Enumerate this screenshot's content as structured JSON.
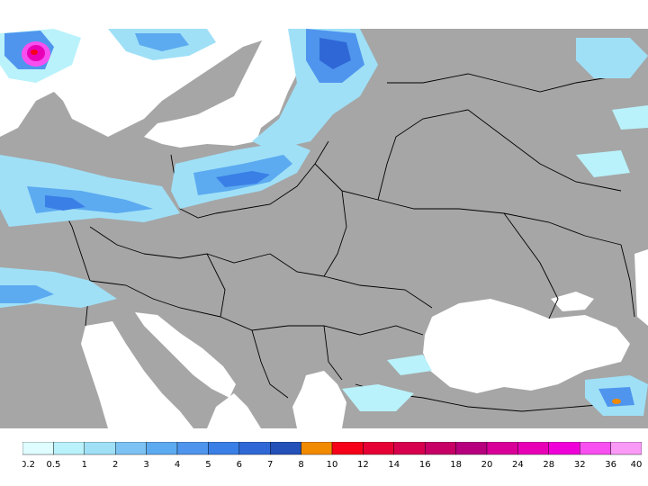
{
  "map": {
    "land_color": "#a6a6a6",
    "sea_color": "#ffffff",
    "border_color": "#000000"
  },
  "legend": {
    "colors": [
      "#dffcff",
      "#b9f2fb",
      "#9fe0f7",
      "#7cc3f3",
      "#5caaf0",
      "#4f95ee",
      "#3a7fe6",
      "#2f68d6",
      "#2451b8",
      "#f28a00",
      "#f50018",
      "#e60033",
      "#d6004c",
      "#c60065",
      "#b6007e",
      "#d80098",
      "#e800b6",
      "#f000d8",
      "#f84ff0",
      "#f99af7"
    ],
    "labels": [
      "0.2",
      "0.5",
      "1",
      "2",
      "3",
      "4",
      "5",
      "6",
      "7",
      "8",
      "10",
      "12",
      "14",
      "16",
      "18",
      "20",
      "24",
      "28",
      "32",
      "36",
      "40"
    ]
  }
}
